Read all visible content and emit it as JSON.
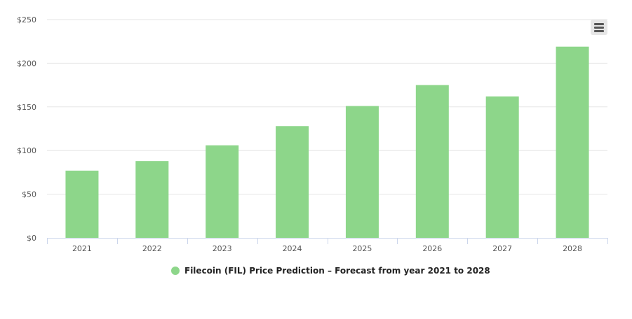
{
  "chart_data": {
    "type": "bar",
    "title": "",
    "xlabel": "",
    "ylabel": "",
    "categories": [
      "2021",
      "2022",
      "2023",
      "2024",
      "2025",
      "2026",
      "2027",
      "2028"
    ],
    "series": [
      {
        "name": "Filecoin (FIL) Price Prediction – Forecast from year 2021 to 2028",
        "values": [
          77,
          88,
          106,
          128,
          151,
          175,
          162,
          219
        ],
        "color": "#8dd68a"
      }
    ],
    "ylim": [
      0,
      250
    ],
    "yticks": [
      0,
      50,
      100,
      150,
      200,
      250
    ],
    "ytick_labels": [
      "$0",
      "$50",
      "$100",
      "$150",
      "$200",
      "$250"
    ],
    "grid": true,
    "legend_position": "bottom-center"
  },
  "toolbar": {
    "menu_icon": "hamburger-menu-icon"
  }
}
